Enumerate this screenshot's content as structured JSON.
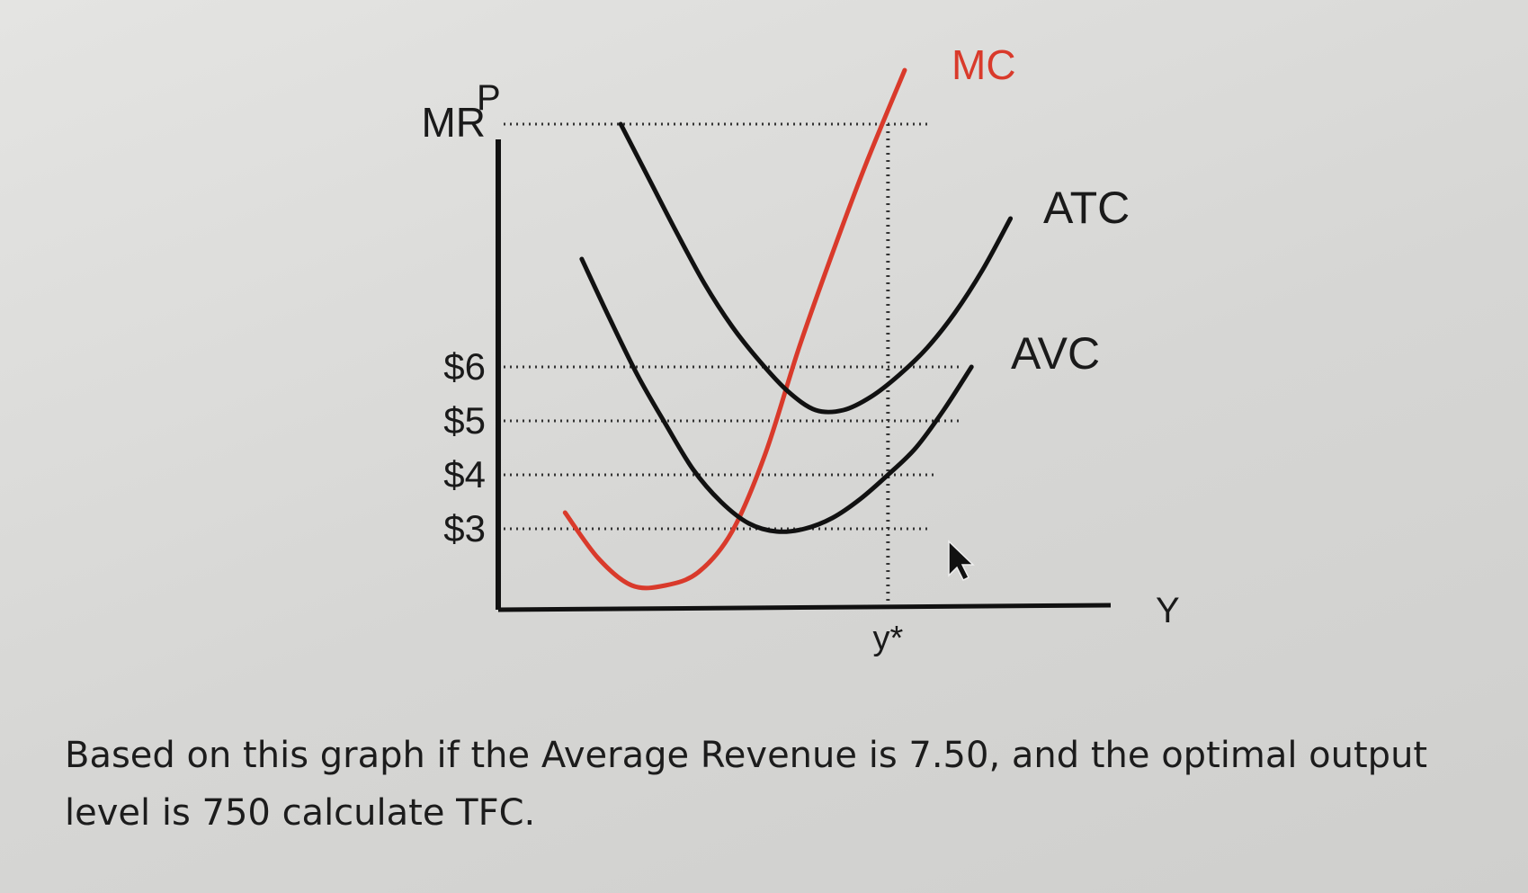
{
  "chart_data": {
    "type": "line",
    "ylabel": "P",
    "xlabel": "Y",
    "y_tick_labels": [
      {
        "label": "MR",
        "value": 10.5
      },
      {
        "label": "$6",
        "value": 6
      },
      {
        "label": "$5",
        "value": 5
      },
      {
        "label": "$4",
        "value": 4
      },
      {
        "label": "$3",
        "value": 3
      }
    ],
    "x_tick_labels": [
      {
        "label": "y*",
        "value": 7.0
      }
    ],
    "ylim": [
      1.5,
      11
    ],
    "xlim": [
      0,
      11
    ],
    "reference_lines_y": [
      10.5,
      6,
      5,
      4,
      3
    ],
    "reference_line_x": 7.0,
    "colors": {
      "MC": "#d93a2b",
      "ATC": "#111111",
      "AVC": "#111111",
      "axis": "#111111",
      "grid": "#333333"
    },
    "series": [
      {
        "name": "MC",
        "color": "#d93a2b",
        "x": [
          1.2,
          1.8,
          2.4,
          3.0,
          3.6,
          4.2,
          4.8,
          5.4,
          6.0,
          6.6,
          7.3
        ],
        "y": [
          3.3,
          2.45,
          1.95,
          1.95,
          2.2,
          2.95,
          4.4,
          6.35,
          8.1,
          9.75,
          11.5
        ]
      },
      {
        "name": "ATC",
        "color": "#111111",
        "x": [
          2.2,
          2.7,
          3.2,
          3.7,
          4.2,
          4.7,
          5.2,
          5.7,
          6.2,
          6.7,
          7.2,
          7.7,
          8.2,
          8.7,
          9.2
        ],
        "y": [
          10.5,
          9.5,
          8.5,
          7.55,
          6.75,
          6.1,
          5.55,
          5.2,
          5.2,
          5.45,
          5.85,
          6.35,
          7.0,
          7.8,
          8.75
        ]
      },
      {
        "name": "AVC",
        "color": "#111111",
        "x": [
          1.5,
          2.0,
          2.5,
          3.0,
          3.5,
          4.0,
          4.5,
          5.0,
          5.5,
          6.0,
          6.5,
          7.0,
          7.5,
          8.0,
          8.5
        ],
        "y": [
          8.0,
          6.9,
          5.85,
          4.95,
          4.1,
          3.5,
          3.1,
          2.95,
          3.0,
          3.2,
          3.55,
          4.0,
          4.5,
          5.2,
          6.0
        ]
      }
    ]
  },
  "question": "Based on this graph if the Average Revenue is 7.50, and the optimal output level is 750 calculate TFC."
}
